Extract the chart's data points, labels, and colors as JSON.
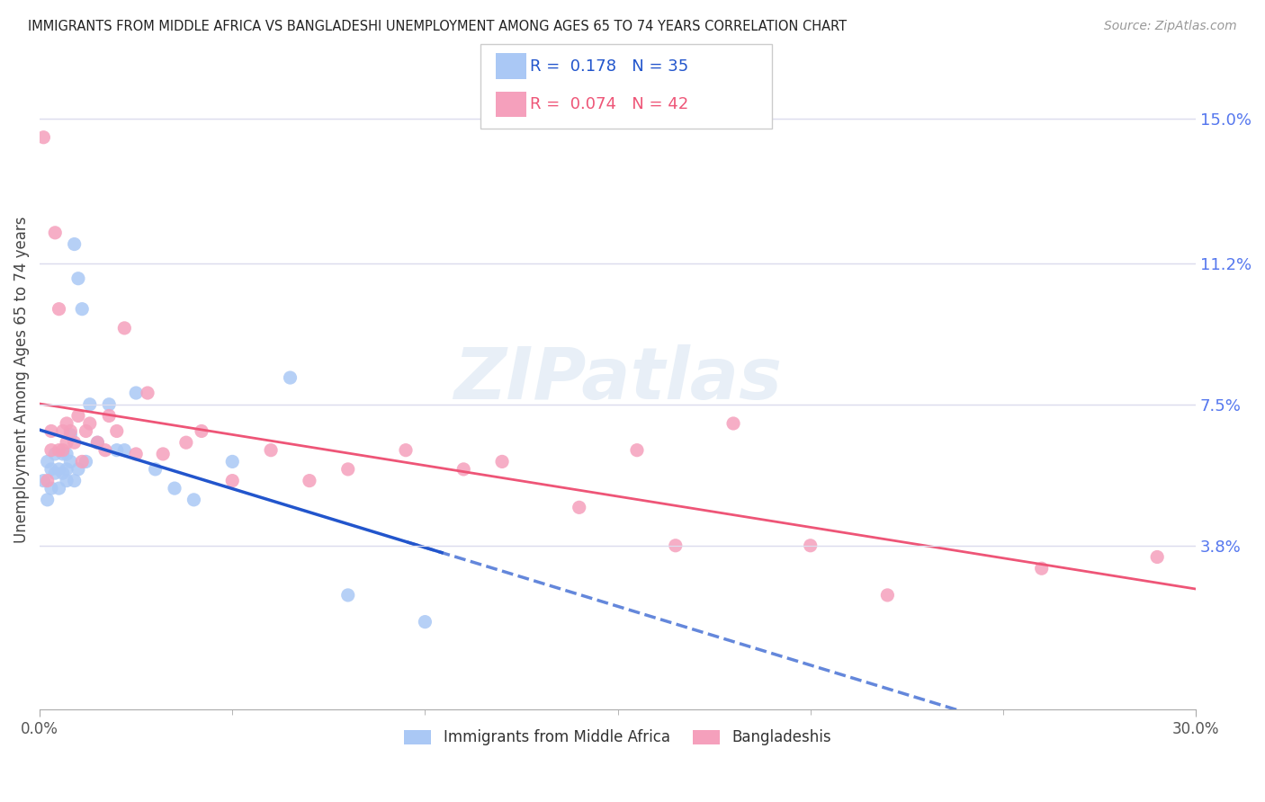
{
  "title": "IMMIGRANTS FROM MIDDLE AFRICA VS BANGLADESHI UNEMPLOYMENT AMONG AGES 65 TO 74 YEARS CORRELATION CHART",
  "source": "Source: ZipAtlas.com",
  "ylabel_left": "Unemployment Among Ages 65 to 74 years",
  "xlim": [
    0.0,
    0.3
  ],
  "ylim": [
    -0.005,
    0.168
  ],
  "xtick_labels": [
    "0.0%",
    "30.0%"
  ],
  "xtick_vals": [
    0.0,
    0.3
  ],
  "xtick_minor_vals": [
    0.05,
    0.1,
    0.15,
    0.2,
    0.25
  ],
  "ytick_right_labels": [
    "3.8%",
    "7.5%",
    "11.2%",
    "15.0%"
  ],
  "ytick_right_vals": [
    0.038,
    0.075,
    0.112,
    0.15
  ],
  "series1_label": "Immigrants from Middle Africa",
  "series2_label": "Bangladeshis",
  "series1_color": "#aac8f5",
  "series2_color": "#f5a0bc",
  "series1_line_color": "#2255cc",
  "series2_line_color": "#ee5577",
  "series1_R": 0.178,
  "series1_N": 35,
  "series2_R": 0.074,
  "series2_N": 42,
  "watermark": "ZIPatlas",
  "background_color": "#ffffff",
  "grid_color": "#ddddee",
  "series1_x": [
    0.001,
    0.002,
    0.002,
    0.003,
    0.003,
    0.004,
    0.004,
    0.005,
    0.005,
    0.006,
    0.006,
    0.007,
    0.007,
    0.007,
    0.008,
    0.008,
    0.009,
    0.009,
    0.01,
    0.01,
    0.011,
    0.012,
    0.013,
    0.015,
    0.018,
    0.02,
    0.022,
    0.025,
    0.03,
    0.035,
    0.04,
    0.05,
    0.065,
    0.08,
    0.1
  ],
  "series1_y": [
    0.055,
    0.06,
    0.05,
    0.058,
    0.053,
    0.057,
    0.062,
    0.053,
    0.058,
    0.057,
    0.062,
    0.058,
    0.062,
    0.055,
    0.06,
    0.067,
    0.117,
    0.055,
    0.108,
    0.058,
    0.1,
    0.06,
    0.075,
    0.065,
    0.075,
    0.063,
    0.063,
    0.078,
    0.058,
    0.053,
    0.05,
    0.06,
    0.082,
    0.025,
    0.018
  ],
  "series2_x": [
    0.001,
    0.002,
    0.003,
    0.003,
    0.004,
    0.005,
    0.005,
    0.006,
    0.006,
    0.007,
    0.007,
    0.008,
    0.009,
    0.01,
    0.011,
    0.012,
    0.013,
    0.015,
    0.017,
    0.018,
    0.02,
    0.022,
    0.025,
    0.028,
    0.032,
    0.038,
    0.042,
    0.05,
    0.06,
    0.07,
    0.08,
    0.095,
    0.11,
    0.12,
    0.14,
    0.155,
    0.165,
    0.18,
    0.2,
    0.22,
    0.26,
    0.29
  ],
  "series2_y": [
    0.145,
    0.055,
    0.068,
    0.063,
    0.12,
    0.1,
    0.063,
    0.063,
    0.068,
    0.07,
    0.065,
    0.068,
    0.065,
    0.072,
    0.06,
    0.068,
    0.07,
    0.065,
    0.063,
    0.072,
    0.068,
    0.095,
    0.062,
    0.078,
    0.062,
    0.065,
    0.068,
    0.055,
    0.063,
    0.055,
    0.058,
    0.063,
    0.058,
    0.06,
    0.048,
    0.063,
    0.038,
    0.07,
    0.038,
    0.025,
    0.032,
    0.035
  ]
}
